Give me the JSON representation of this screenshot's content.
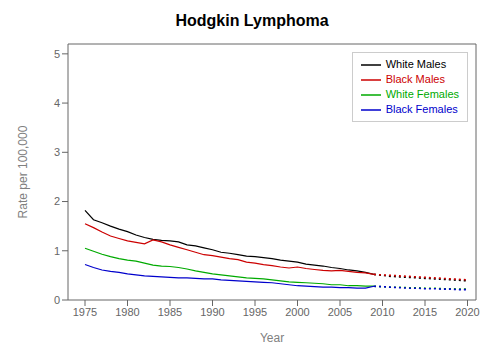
{
  "chart_data": {
    "type": "line",
    "title": "Hodgkin Lymphoma",
    "x_label": "Year",
    "y_label": "Rate per 100,000",
    "x": [
      1975,
      1976,
      1977,
      1978,
      1979,
      1980,
      1981,
      1982,
      1983,
      1984,
      1985,
      1986,
      1987,
      1988,
      1989,
      1990,
      1991,
      1992,
      1993,
      1994,
      1995,
      1996,
      1997,
      1998,
      1999,
      2000,
      2001,
      2002,
      2003,
      2004,
      2005,
      2006,
      2007,
      2008,
      2009,
      2010,
      2011,
      2012,
      2013,
      2014,
      2015,
      2016,
      2017,
      2018,
      2019,
      2020
    ],
    "xlim": [
      1973,
      2021
    ],
    "xticks": [
      1975,
      1980,
      1985,
      1990,
      1995,
      2000,
      2005,
      2010,
      2015,
      2020
    ],
    "ylim": [
      0,
      5.2
    ],
    "yticks": [
      0,
      1,
      2,
      3,
      4,
      5
    ],
    "grid": false,
    "legend": "upper right",
    "series": [
      {
        "name": "White Males",
        "color": "#000000",
        "line_style": "solid",
        "values": [
          1.82,
          1.63,
          1.57,
          1.5,
          1.44,
          1.39,
          1.32,
          1.27,
          1.23,
          1.21,
          1.2,
          1.18,
          1.12,
          1.1,
          1.06,
          1.02,
          0.97,
          0.95,
          0.92,
          0.89,
          0.88,
          0.86,
          0.84,
          0.81,
          0.79,
          0.77,
          0.73,
          0.71,
          0.69,
          0.66,
          0.64,
          0.61,
          0.59,
          0.56,
          0.52,
          null,
          null,
          null,
          null,
          null,
          null,
          null,
          null,
          null,
          null,
          null
        ]
      },
      {
        "color": "#000000",
        "line_style": "dotted",
        "values": [
          null,
          null,
          null,
          null,
          null,
          null,
          null,
          null,
          null,
          null,
          null,
          null,
          null,
          null,
          null,
          null,
          null,
          null,
          null,
          null,
          null,
          null,
          null,
          null,
          null,
          null,
          null,
          null,
          null,
          null,
          null,
          null,
          null,
          null,
          0.52,
          0.5,
          0.48,
          0.47,
          0.46,
          0.45,
          0.44,
          0.43,
          0.42,
          0.41,
          0.4,
          0.39
        ]
      },
      {
        "name": "Black Males",
        "color": "#cc0000",
        "line_style": "solid",
        "values": [
          1.55,
          1.47,
          1.38,
          1.3,
          1.25,
          1.2,
          1.17,
          1.14,
          1.22,
          1.18,
          1.12,
          1.07,
          1.02,
          0.97,
          0.92,
          0.9,
          0.87,
          0.84,
          0.82,
          0.77,
          0.75,
          0.72,
          0.7,
          0.67,
          0.65,
          0.67,
          0.64,
          0.62,
          0.6,
          0.59,
          0.6,
          0.58,
          0.56,
          0.55,
          0.52,
          null,
          null,
          null,
          null,
          null,
          null,
          null,
          null,
          null,
          null,
          null
        ]
      },
      {
        "color": "#cc0000",
        "line_style": "dotted",
        "values": [
          null,
          null,
          null,
          null,
          null,
          null,
          null,
          null,
          null,
          null,
          null,
          null,
          null,
          null,
          null,
          null,
          null,
          null,
          null,
          null,
          null,
          null,
          null,
          null,
          null,
          null,
          null,
          null,
          null,
          null,
          null,
          null,
          null,
          null,
          0.52,
          0.51,
          0.5,
          0.49,
          0.48,
          0.47,
          0.46,
          0.45,
          0.44,
          0.43,
          0.42,
          0.41
        ]
      },
      {
        "name": "White Females",
        "color": "#00aa00",
        "line_style": "solid",
        "values": [
          1.05,
          0.99,
          0.93,
          0.88,
          0.84,
          0.81,
          0.79,
          0.75,
          0.71,
          0.69,
          0.68,
          0.66,
          0.63,
          0.59,
          0.56,
          0.53,
          0.51,
          0.49,
          0.47,
          0.45,
          0.44,
          0.43,
          0.41,
          0.39,
          0.37,
          0.36,
          0.35,
          0.34,
          0.33,
          0.31,
          0.31,
          0.29,
          0.29,
          0.28,
          0.28,
          null,
          null,
          null,
          null,
          null,
          null,
          null,
          null,
          null,
          null,
          null
        ]
      },
      {
        "color": "#00aa00",
        "line_style": "dotted",
        "values": [
          null,
          null,
          null,
          null,
          null,
          null,
          null,
          null,
          null,
          null,
          null,
          null,
          null,
          null,
          null,
          null,
          null,
          null,
          null,
          null,
          null,
          null,
          null,
          null,
          null,
          null,
          null,
          null,
          null,
          null,
          null,
          null,
          null,
          null,
          0.28,
          0.27,
          0.26,
          0.26,
          0.25,
          0.25,
          0.24,
          0.24,
          0.23,
          0.23,
          0.22,
          0.22
        ]
      },
      {
        "name": "Black Females",
        "color": "#0000cc",
        "line_style": "solid",
        "values": [
          0.72,
          0.66,
          0.61,
          0.58,
          0.56,
          0.53,
          0.51,
          0.49,
          0.48,
          0.47,
          0.46,
          0.45,
          0.45,
          0.44,
          0.43,
          0.43,
          0.41,
          0.4,
          0.39,
          0.38,
          0.37,
          0.36,
          0.35,
          0.33,
          0.31,
          0.29,
          0.28,
          0.27,
          0.26,
          0.26,
          0.25,
          0.25,
          0.24,
          0.24,
          0.28,
          null,
          null,
          null,
          null,
          null,
          null,
          null,
          null,
          null,
          null,
          null
        ]
      },
      {
        "color": "#0000cc",
        "line_style": "dotted",
        "values": [
          null,
          null,
          null,
          null,
          null,
          null,
          null,
          null,
          null,
          null,
          null,
          null,
          null,
          null,
          null,
          null,
          null,
          null,
          null,
          null,
          null,
          null,
          null,
          null,
          null,
          null,
          null,
          null,
          null,
          null,
          null,
          null,
          null,
          null,
          0.28,
          0.27,
          0.26,
          0.25,
          0.24,
          0.24,
          0.23,
          0.23,
          0.22,
          0.22,
          0.21,
          0.21
        ]
      }
    ]
  }
}
